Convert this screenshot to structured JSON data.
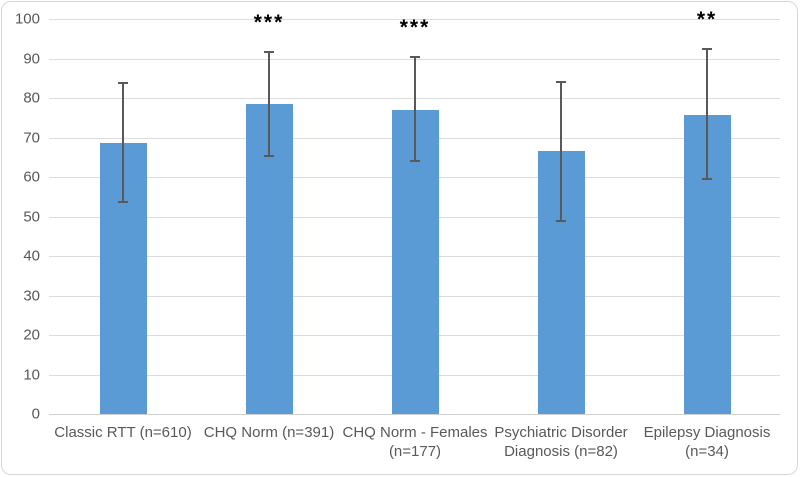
{
  "chart_data": {
    "type": "bar",
    "title": "",
    "xlabel": "",
    "ylabel": "",
    "categories": [
      "Classic RTT (n=610)",
      "CHQ Norm (n=391)",
      "CHQ Norm - Females (n=177)",
      "Psychiatric Disorder Diagnosis (n=82)",
      "Epilepsy Diagnosis (n=34)"
    ],
    "values": [
      68.7,
      78.5,
      77.0,
      66.5,
      75.8
    ],
    "error_low": [
      53.7,
      65.2,
      64.0,
      48.8,
      59.4
    ],
    "error_high": [
      83.8,
      91.7,
      90.4,
      84.0,
      92.5
    ],
    "significance": [
      "",
      "***",
      "***",
      "",
      "**"
    ],
    "ylim": [
      0,
      100
    ],
    "ytick_step": 10,
    "ytick_labels": [
      "0",
      "10",
      "20",
      "30",
      "40",
      "50",
      "60",
      "70",
      "80",
      "90",
      "100"
    ],
    "grid": true,
    "legend": "none",
    "bar_color": "#5B9BD5",
    "error_color": "#595959",
    "gridline_color": "#DCDCDC",
    "label_color": "#595959",
    "significance_color": "#000000"
  }
}
